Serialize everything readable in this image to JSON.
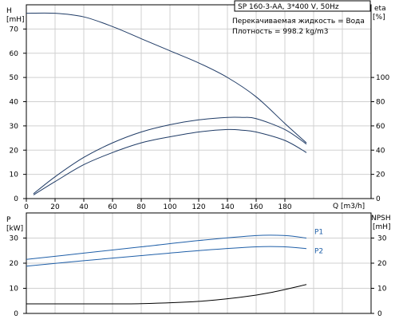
{
  "info": {
    "model": "SP 160-3-AA, 3*400 V, 50Hz",
    "liquid": "Перекачиваемая жидкость = Вода",
    "density": "Плотность = 998.2 kg/m3"
  },
  "colors": {
    "curve": "#1f3b66",
    "power": "#1f5fa8",
    "grid": "#d0d0d0"
  },
  "chart_data": [
    {
      "type": "line",
      "name": "head-efficiency",
      "x_unit_label": "Q [m3/h]",
      "xlim": [
        0,
        240
      ],
      "x_ticks": [
        0,
        20,
        40,
        60,
        80,
        100,
        120,
        140,
        160,
        180
      ],
      "ylim": [
        0,
        80
      ],
      "y_ticks": [
        0,
        10,
        20,
        30,
        40,
        50,
        60,
        70
      ],
      "y_label_top": "H",
      "y_label_unit": "[mH]",
      "y2lim": [
        0,
        160
      ],
      "y2_ticks": [
        0,
        20,
        40,
        60,
        80,
        100
      ],
      "y2_label_top": "eta",
      "y2_label_unit": "[%]",
      "grid": true,
      "series": [
        {
          "axis": "left",
          "x": [
            0,
            20,
            40,
            60,
            80,
            100,
            120,
            140,
            160,
            180,
            195
          ],
          "y": [
            76.5,
            76.5,
            75,
            71,
            66,
            61,
            56,
            50,
            42,
            31,
            23
          ]
        },
        {
          "axis": "right",
          "x": [
            5,
            20,
            40,
            60,
            80,
            100,
            120,
            140,
            150,
            160,
            180,
            195
          ],
          "y": [
            4,
            18,
            34,
            46,
            55,
            61,
            65,
            67,
            67,
            66,
            57,
            45
          ]
        },
        {
          "axis": "right",
          "x": [
            5,
            20,
            40,
            60,
            80,
            100,
            120,
            140,
            150,
            160,
            180,
            195
          ],
          "y": [
            3,
            14,
            28,
            38,
            46,
            51,
            55,
            57,
            56.5,
            55,
            48,
            38
          ]
        }
      ]
    },
    {
      "type": "line",
      "name": "power-npsh",
      "xlim": [
        0,
        240
      ],
      "ylim": [
        0,
        40
      ],
      "y_ticks": [
        0,
        10,
        20,
        30
      ],
      "y_label_top": "P",
      "y_label_unit": "[kW]",
      "y2lim": [
        0,
        40
      ],
      "y2_ticks": [
        0,
        10,
        20,
        30
      ],
      "y2_label_top": "NPSH",
      "y2_label_unit": "[mH]",
      "grid": true,
      "series": [
        {
          "name": "P1",
          "axis": "left",
          "x": [
            0,
            40,
            80,
            120,
            160,
            180,
            195
          ],
          "y": [
            21.5,
            24,
            26.5,
            29,
            31,
            31,
            30
          ]
        },
        {
          "name": "P2",
          "axis": "left",
          "x": [
            0,
            40,
            80,
            120,
            160,
            180,
            195
          ],
          "y": [
            18.8,
            21,
            23,
            25,
            26.5,
            26.5,
            25.8
          ]
        },
        {
          "axis": "right",
          "x": [
            0,
            40,
            80,
            120,
            150,
            170,
            195
          ],
          "y": [
            3.8,
            3.8,
            3.9,
            4.8,
            6.5,
            8.3,
            11.5
          ]
        }
      ]
    }
  ]
}
